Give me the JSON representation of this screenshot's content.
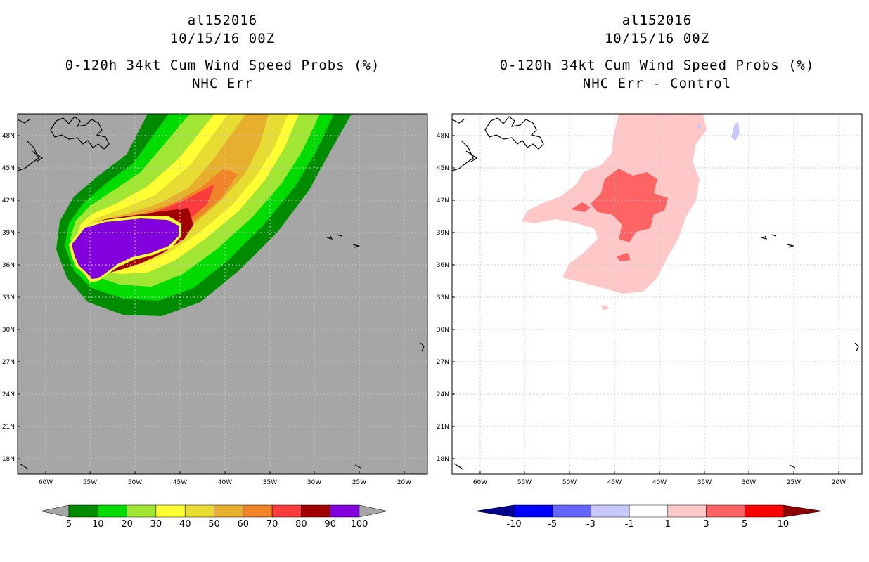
{
  "left": {
    "storm_id": "al152016",
    "datetime": "10/15/16 00Z",
    "product": "0-120h 34kt Cum Wind Speed Probs (%)",
    "subtitle": "NHC Err",
    "colorbar": {
      "labels": [
        "5",
        "10",
        "20",
        "30",
        "40",
        "50",
        "60",
        "70",
        "80",
        "90",
        "100"
      ],
      "colors": [
        "#008c00",
        "#00dc00",
        "#a0e632",
        "#ffff33",
        "#e6dc32",
        "#e6af2d",
        "#f08228",
        "#fa3c3c",
        "#a00000",
        "#8200dc"
      ],
      "end_color": "#a6a6a6"
    }
  },
  "right": {
    "storm_id": "al152016",
    "datetime": "10/15/16 00Z",
    "product": "0-120h 34kt Cum Wind Speed Probs (%)",
    "subtitle": "NHC Err - Control",
    "colorbar": {
      "labels": [
        "-10",
        "-5",
        "-3",
        "-1",
        "1",
        "3",
        "5",
        "10"
      ],
      "colors": [
        "#0000ff",
        "#6464ff",
        "#c8c8ff",
        "#ffffff",
        "#ffc8c8",
        "#ff6464",
        "#ff0000"
      ],
      "low_color": "#00008c",
      "high_color": "#8c0000"
    }
  },
  "map": {
    "lat_labels": [
      "48N",
      "45N",
      "42N",
      "39N",
      "36N",
      "33N",
      "30N",
      "27N",
      "24N",
      "21N",
      "18N"
    ],
    "lon_labels": [
      "60W",
      "55W",
      "50W",
      "45W",
      "40W",
      "35W",
      "30W",
      "25W",
      "20W"
    ]
  }
}
